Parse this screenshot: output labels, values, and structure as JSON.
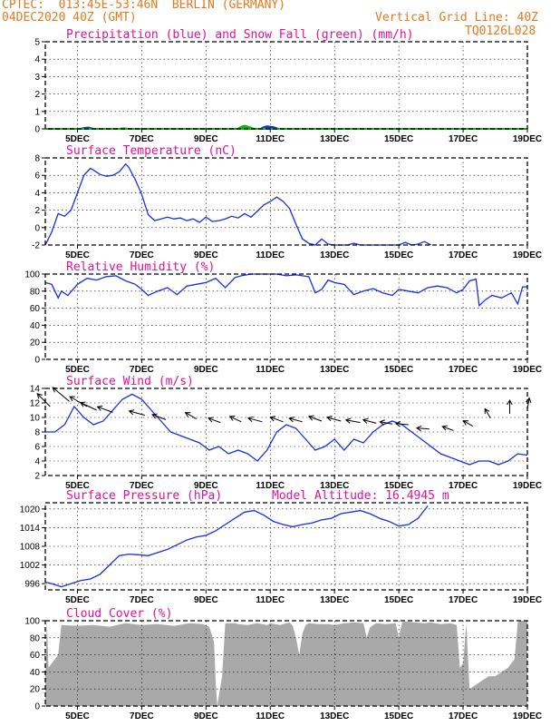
{
  "header": {
    "station_line": "CPTEC:  013:45E-53:46N  BERLIN (GERMANY)",
    "run_line": "04DEC2020 40Z (GMT)",
    "grid_note": "Vertical Grid Line: 40Z",
    "code": "TQ0126L028"
  },
  "x_axis": {
    "start_day": 4.0,
    "end_day": 19.0,
    "tick_labels": [
      "5DEC",
      "7DEC",
      "9DEC",
      "11DEC",
      "13DEC",
      "15DEC",
      "17DEC",
      "19DEC"
    ],
    "tick_days": [
      5,
      7,
      9,
      11,
      13,
      15,
      17,
      19
    ]
  },
  "colors": {
    "line": "#1530e0",
    "snow": "#10b010",
    "cloud": "#a9a9a9",
    "title": "#e0109a",
    "header": "#e07a20"
  },
  "chart_data": [
    {
      "type": "area",
      "title": "Precipitation (blue) and Snow Fall (green) (mm/h)",
      "ylim": [
        0,
        5
      ],
      "yticks": [
        0,
        1,
        2,
        3,
        4,
        5
      ],
      "series": [
        {
          "name": "blue",
          "x": [
            4.0,
            5.1,
            5.2,
            5.35,
            5.5,
            10.7,
            10.8,
            10.9,
            11.0,
            11.1,
            11.25,
            19.0
          ],
          "values": [
            0,
            0,
            0.05,
            0.08,
            0,
            0,
            0.1,
            0.15,
            0.12,
            0.1,
            0,
            0
          ]
        },
        {
          "name": "green",
          "x": [
            4.0,
            6.3,
            6.45,
            6.6,
            10.0,
            10.1,
            10.2,
            10.35,
            10.5,
            19.0
          ],
          "values": [
            0,
            0,
            0.03,
            0,
            0,
            0.12,
            0.18,
            0.1,
            0,
            0
          ]
        }
      ]
    },
    {
      "type": "line",
      "title": "Surface Temperature (nC)",
      "ylim": [
        -2,
        8
      ],
      "yticks": [
        -2,
        0,
        2,
        4,
        6,
        8
      ],
      "x": [
        4.0,
        4.2,
        4.4,
        4.6,
        4.8,
        5.0,
        5.2,
        5.4,
        5.5,
        5.7,
        5.9,
        6.1,
        6.3,
        6.5,
        6.6,
        6.8,
        7.0,
        7.2,
        7.4,
        7.6,
        7.8,
        8.0,
        8.2,
        8.4,
        8.6,
        8.8,
        9.0,
        9.2,
        9.4,
        9.6,
        9.8,
        10.0,
        10.2,
        10.4,
        10.6,
        10.8,
        11.0,
        11.2,
        11.4,
        11.6,
        11.8,
        12.0,
        12.2,
        12.4,
        12.6,
        12.8,
        13.0,
        13.2,
        13.4,
        13.6,
        13.8,
        14.0,
        14.2,
        14.4,
        14.6,
        14.8,
        15.0,
        15.2,
        15.4,
        15.6,
        15.8,
        16.0
      ],
      "values": [
        -2,
        -0.5,
        1.6,
        1.3,
        2.0,
        4.0,
        6.0,
        6.8,
        6.6,
        6.1,
        5.9,
        6.0,
        6.4,
        7.3,
        6.9,
        5.5,
        3.8,
        1.5,
        0.8,
        1.0,
        1.2,
        1.0,
        1.1,
        0.8,
        1.0,
        0.6,
        1.2,
        0.7,
        0.8,
        1.0,
        1.3,
        1.1,
        1.6,
        1.2,
        1.9,
        2.6,
        3.0,
        3.5,
        3.0,
        2.2,
        0.4,
        -1.3,
        -1.8,
        -2.0,
        -1.3,
        -1.9,
        -2.0,
        -2.0,
        -2.0,
        -1.8,
        -2.0,
        -2.0,
        -2.0,
        -2.0,
        -2.0,
        -2.0,
        -2.0,
        -1.7,
        -2.0,
        -1.9,
        -1.6,
        -2.0
      ]
    },
    {
      "type": "line",
      "title": "Relative Humidity (%)",
      "ylim": [
        0,
        100
      ],
      "yticks": [
        0,
        20,
        40,
        60,
        80,
        100
      ],
      "x": [
        4.0,
        4.2,
        4.4,
        4.5,
        4.7,
        5.0,
        5.3,
        5.6,
        5.9,
        6.2,
        6.5,
        6.8,
        7.0,
        7.2,
        7.5,
        7.8,
        8.1,
        8.4,
        8.7,
        9.0,
        9.3,
        9.6,
        9.9,
        10.1,
        10.4,
        10.7,
        10.9,
        11.2,
        11.5,
        11.8,
        12.0,
        12.2,
        12.4,
        12.6,
        12.8,
        13.0,
        13.3,
        13.6,
        13.9,
        14.2,
        14.5,
        14.8,
        15.0,
        15.3,
        15.6,
        15.9,
        16.2,
        16.5,
        16.8,
        17.0,
        17.2,
        17.4,
        17.5,
        17.7,
        17.9,
        18.2,
        18.5,
        18.7,
        18.85,
        19.0
      ],
      "values": [
        90,
        88,
        72,
        80,
        75,
        88,
        95,
        93,
        97,
        98,
        92,
        88,
        82,
        75,
        80,
        84,
        76,
        86,
        88,
        90,
        95,
        84,
        96,
        98,
        100,
        100,
        100,
        100,
        98,
        99,
        98,
        97,
        78,
        82,
        93,
        90,
        88,
        76,
        80,
        83,
        78,
        75,
        82,
        80,
        78,
        84,
        86,
        84,
        78,
        82,
        92,
        94,
        63,
        70,
        75,
        72,
        78,
        65,
        85,
        85
      ]
    },
    {
      "type": "line",
      "title": "Surface Wind (m/s)",
      "ylim": [
        2,
        14
      ],
      "yticks": [
        2,
        4,
        6,
        8,
        10,
        12,
        14
      ],
      "x": [
        4.0,
        4.3,
        4.6,
        4.9,
        5.2,
        5.5,
        5.8,
        6.1,
        6.4,
        6.7,
        7.0,
        7.3,
        7.6,
        7.9,
        8.2,
        8.5,
        8.8,
        9.1,
        9.4,
        9.7,
        10.0,
        10.3,
        10.6,
        10.9,
        11.2,
        11.5,
        11.8,
        12.1,
        12.4,
        12.7,
        13.0,
        13.3,
        13.6,
        13.9,
        14.2,
        14.5,
        14.8,
        15.1,
        15.4,
        15.7,
        16.0,
        16.3,
        16.6,
        16.9,
        17.2,
        17.5,
        17.8,
        18.1,
        18.4,
        18.7,
        19.0
      ],
      "values": [
        8,
        8,
        9,
        11.5,
        10,
        9,
        9.5,
        11,
        12.5,
        13.2,
        12.5,
        11,
        9.5,
        8,
        7.5,
        7,
        6.5,
        5.5,
        6,
        5,
        5.5,
        5,
        4,
        5.5,
        8,
        9,
        8.5,
        7,
        5.5,
        6,
        7,
        5.5,
        7,
        6.5,
        8,
        9,
        9.5,
        9,
        8,
        7,
        6,
        5,
        4.5,
        4,
        3.5,
        4,
        4,
        3.5,
        4,
        5,
        4.8
      ]
    },
    {
      "type": "line",
      "title": "Surface Pressure (hPa)",
      "annotation": "Model Altitude: 16.4945 m",
      "ylim": [
        994,
        1022
      ],
      "yticks": [
        996,
        1002,
        1008,
        1014,
        1020
      ],
      "x": [
        4.0,
        4.2,
        4.5,
        4.8,
        5.1,
        5.4,
        5.7,
        6.0,
        6.3,
        6.6,
        6.9,
        7.2,
        7.5,
        7.8,
        8.1,
        8.4,
        8.7,
        9.0,
        9.3,
        9.6,
        9.9,
        10.2,
        10.5,
        10.8,
        11.1,
        11.4,
        11.7,
        12.0,
        12.3,
        12.6,
        12.9,
        13.2,
        13.5,
        13.8,
        14.1,
        14.4,
        14.7,
        15.0,
        15.3,
        15.6,
        15.9
      ],
      "values": [
        996.5,
        996,
        995,
        996,
        997,
        997.5,
        999,
        1002,
        1005,
        1005.5,
        1005.3,
        1005,
        1006,
        1007,
        1008.5,
        1010,
        1011,
        1011.5,
        1013,
        1015,
        1017,
        1019,
        1019.5,
        1018,
        1016,
        1015,
        1014.3,
        1015,
        1015.5,
        1016.5,
        1017,
        1018.5,
        1019,
        1019.5,
        1018.5,
        1017,
        1016,
        1014.5,
        1015,
        1017,
        1021
      ]
    },
    {
      "type": "area",
      "title": "Cloud Cover (%)",
      "ylim": [
        0,
        100
      ],
      "yticks": [
        0,
        20,
        40,
        60,
        80,
        100
      ],
      "x": [
        4.0,
        4.05,
        4.1,
        4.2,
        4.3,
        4.4,
        4.5,
        5.0,
        5.5,
        6.0,
        6.5,
        7.0,
        7.5,
        8.0,
        8.5,
        8.9,
        9.1,
        9.25,
        9.3,
        9.35,
        9.5,
        9.6,
        9.9,
        10.0,
        10.3,
        10.6,
        10.9,
        11.0,
        11.3,
        11.6,
        11.7,
        11.8,
        11.9,
        12.0,
        12.1,
        12.2,
        12.5,
        12.8,
        13.0,
        13.3,
        13.6,
        13.9,
        14.0,
        14.1,
        14.2,
        14.3,
        14.6,
        14.9,
        15.0,
        15.1,
        15.2,
        15.5,
        15.8,
        16.0,
        16.3,
        16.6,
        16.8,
        16.9,
        17.0,
        17.1,
        17.2,
        17.4,
        17.6,
        17.8,
        18.0,
        18.2,
        18.4,
        18.5,
        18.6,
        18.7,
        18.8,
        19.0
      ],
      "values": [
        30,
        100,
        45,
        50,
        55,
        60,
        95,
        94,
        95,
        93,
        97,
        95,
        96,
        94,
        97,
        96,
        93,
        75,
        30,
        0,
        35,
        97,
        97,
        96,
        95,
        97,
        95,
        97,
        95,
        98,
        94,
        80,
        60,
        85,
        95,
        97,
        96,
        96,
        95,
        97,
        98,
        97,
        80,
        92,
        95,
        97,
        96,
        97,
        80,
        98,
        99,
        98,
        97,
        98,
        96,
        97,
        95,
        45,
        50,
        97,
        20,
        25,
        30,
        35,
        35,
        40,
        45,
        50,
        55,
        98,
        100,
        100
      ]
    }
  ]
}
